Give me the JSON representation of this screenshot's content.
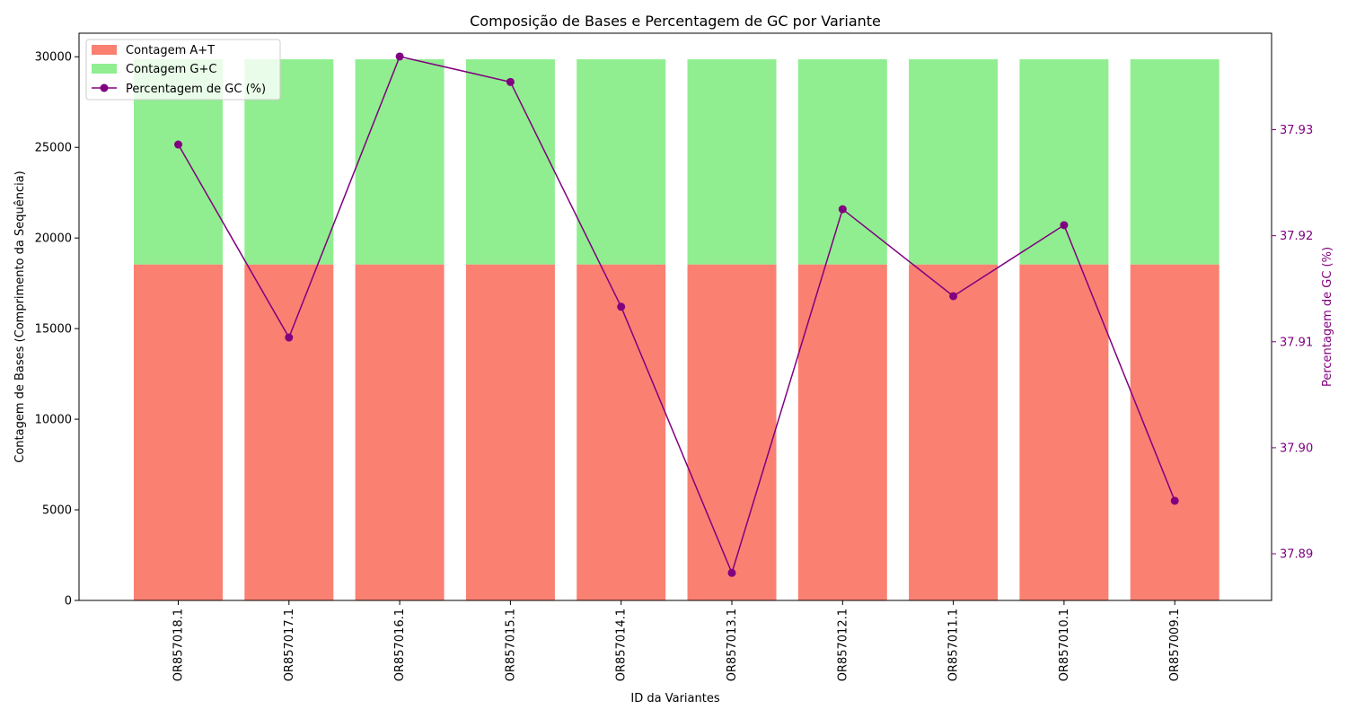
{
  "chart_data": {
    "type": "bar",
    "title": "Composição de Bases e Percentagem de GC por Variante",
    "xlabel": "ID da Variantes",
    "ylabel": "Contagem de Bases (Comprimento da Sequência)",
    "ylabel_right": "Percentagem de GC (%)",
    "categories": [
      "OR857018.1",
      "OR857017.1",
      "OR857016.1",
      "OR857015.1",
      "OR857014.1",
      "OR857013.1",
      "OR857012.1",
      "OR857011.1",
      "OR857010.1",
      "OR857009.1"
    ],
    "series": [
      {
        "name": "Contagem A+T",
        "kind": "bar",
        "color": "#fa8072",
        "values": [
          18540,
          18540,
          18540,
          18540,
          18540,
          18540,
          18540,
          18540,
          18540,
          18540
        ]
      },
      {
        "name": "Contagem G+C",
        "kind": "bar",
        "color": "#90ee90",
        "values": [
          11320,
          11320,
          11320,
          11320,
          11320,
          11320,
          11320,
          11320,
          11320,
          11320
        ]
      },
      {
        "name": "Percentagem de GC (%)",
        "kind": "line",
        "axis": "right",
        "color": "#800080",
        "values": [
          37.9286,
          37.9104,
          37.9369,
          37.9345,
          37.9133,
          37.8882,
          37.9225,
          37.9143,
          37.921,
          37.895
        ]
      }
    ],
    "ylim": [
      0,
      31300
    ],
    "yticks": [
      0,
      5000,
      10000,
      15000,
      20000,
      25000,
      30000
    ],
    "ylim_right": [
      37.8856,
      37.9391
    ],
    "yticks_right": [
      "37.89",
      "37.90",
      "37.91",
      "37.92",
      "37.93"
    ],
    "legend_position": "top-left",
    "grid": false
  }
}
